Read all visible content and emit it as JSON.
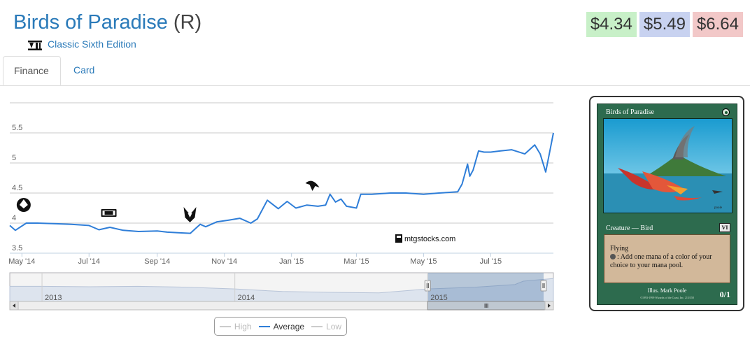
{
  "header": {
    "card_name": "Birds of Paradise",
    "rarity": "(R)",
    "set_name": "Classic Sixth Edition",
    "set_icon": "classic-sixth-edition-set-icon"
  },
  "prices": {
    "low": "$4.34",
    "avg": "$5.49",
    "high": "$6.64",
    "colors": {
      "low": "#c8f0c8",
      "avg": "#c8d2f0",
      "high": "#f2c8c8"
    }
  },
  "tabs": [
    {
      "label": "Finance",
      "active": true
    },
    {
      "label": "Card",
      "active": false
    }
  ],
  "chart_data": {
    "type": "line",
    "title": "",
    "xlabel": "",
    "ylabel": "",
    "ylim": [
      3.5,
      5.5
    ],
    "yticks": [
      "3.5",
      "4",
      "4.5",
      "5",
      "5.5"
    ],
    "xticks": [
      "May '14",
      "Jul '14",
      "Sep '14",
      "Nov '14",
      "Jan '15",
      "Mar '15",
      "May '15",
      "Jul '15"
    ],
    "grid": true,
    "watermark": "mtgstocks.com",
    "series": [
      {
        "name": "Average",
        "color": "#2f7ed8",
        "x": [
          "2014-04-20",
          "2014-04-25",
          "2014-05-05",
          "2014-05-15",
          "2014-06-01",
          "2014-06-15",
          "2014-07-01",
          "2014-07-10",
          "2014-07-20",
          "2014-08-01",
          "2014-08-15",
          "2014-09-01",
          "2014-09-10",
          "2014-09-20",
          "2014-10-01",
          "2014-10-10",
          "2014-10-15",
          "2014-10-25",
          "2014-11-05",
          "2014-11-15",
          "2014-11-25",
          "2014-12-01",
          "2014-12-10",
          "2014-12-20",
          "2014-12-28",
          "2015-01-05",
          "2015-01-15",
          "2015-01-25",
          "2015-02-01",
          "2015-02-05",
          "2015-02-10",
          "2015-02-15",
          "2015-02-20",
          "2015-03-01",
          "2015-03-05",
          "2015-03-15",
          "2015-04-01",
          "2015-04-15",
          "2015-05-01",
          "2015-05-15",
          "2015-06-01",
          "2015-06-05",
          "2015-06-10",
          "2015-06-12",
          "2015-06-15",
          "2015-06-20",
          "2015-06-25",
          "2015-07-01",
          "2015-07-10",
          "2015-07-20",
          "2015-08-01",
          "2015-08-10",
          "2015-08-15",
          "2015-08-20",
          "2015-08-24",
          "2015-08-27"
        ],
        "values": [
          3.96,
          3.88,
          4.0,
          4.0,
          3.99,
          3.98,
          3.96,
          3.89,
          3.93,
          3.88,
          3.86,
          3.87,
          3.85,
          3.84,
          3.83,
          3.98,
          3.94,
          4.02,
          4.05,
          4.08,
          4.0,
          4.07,
          4.38,
          4.24,
          4.36,
          4.25,
          4.3,
          4.28,
          4.3,
          4.48,
          4.35,
          4.4,
          4.28,
          4.25,
          4.48,
          4.48,
          4.5,
          4.5,
          4.48,
          4.5,
          4.52,
          4.65,
          4.98,
          4.78,
          4.88,
          5.2,
          5.18,
          5.18,
          5.2,
          5.22,
          5.15,
          5.3,
          5.15,
          4.85,
          5.22,
          5.5
        ]
      }
    ],
    "navigator": {
      "year_labels": [
        "2013",
        "2014",
        "2015"
      ],
      "x": [
        "2012-11-01",
        "2013-01-01",
        "2013-04-01",
        "2013-07-01",
        "2013-10-01",
        "2014-01-01",
        "2014-04-01",
        "2014-07-01",
        "2014-10-01",
        "2015-01-01",
        "2015-04-01",
        "2015-06-15",
        "2015-07-01",
        "2015-08-27"
      ],
      "values": [
        4.6,
        4.6,
        4.55,
        4.6,
        4.5,
        4.3,
        4.0,
        3.9,
        3.85,
        4.3,
        4.5,
        4.8,
        5.2,
        5.5
      ],
      "selected_range": [
        "2014-04-20",
        "2015-08-27"
      ]
    },
    "events": [
      {
        "date": "2014-04-25",
        "label": "rebel-set-icon"
      },
      {
        "date": "2014-07-12",
        "label": "m15-set-icon"
      },
      {
        "date": "2014-09-25",
        "label": "khans-set-icon"
      },
      {
        "date": "2015-01-20",
        "label": "fate-reforged-set-icon"
      }
    ],
    "legend": {
      "placement": "bottom-center",
      "items": [
        {
          "label": "High",
          "visible": false
        },
        {
          "label": "Average",
          "visible": true
        },
        {
          "label": "Low",
          "visible": false
        }
      ]
    }
  },
  "card": {
    "name": "Birds of Paradise",
    "type_line": "Creature — Bird",
    "rules_1": "Flying",
    "rules_2": ": Add one mana of a color of your choice to your mana pool.",
    "illus": "Illus. Mark Poole",
    "copyright": "©1993-1999 Wizards of the Coast, Inc. 213/350",
    "pt": "0/1",
    "set_symbol": "VI",
    "art_signature": "poole"
  }
}
